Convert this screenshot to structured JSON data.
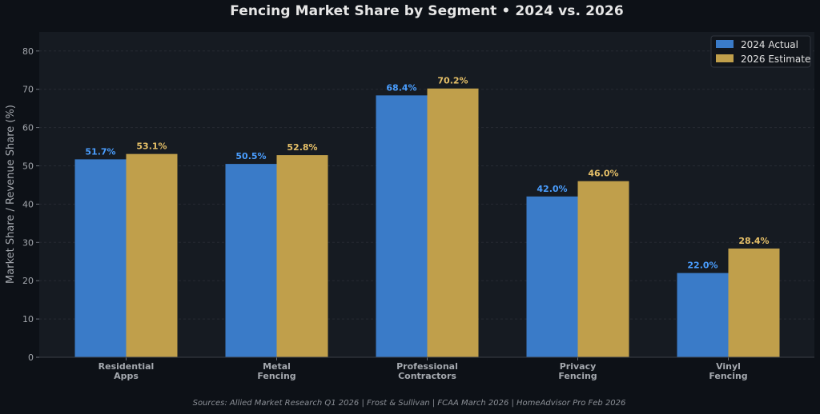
{
  "chart_data": {
    "type": "bar",
    "title": "Fencing Market Share by Segment  •  2024 vs. 2026",
    "xlabel": "",
    "ylabel": "Market Share / Revenue Share (%)",
    "ylim": [
      0,
      85
    ],
    "yticks": [
      0,
      10,
      20,
      30,
      40,
      50,
      60,
      70,
      80
    ],
    "grid": true,
    "legend_position": "top-right",
    "categories": [
      [
        "Residential",
        "Apps"
      ],
      [
        "Metal",
        "Fencing"
      ],
      [
        "Professional",
        "Contractors"
      ],
      [
        "Privacy",
        "Fencing"
      ],
      [
        "Vinyl",
        "Fencing"
      ]
    ],
    "series": [
      {
        "name": "2024 Actual",
        "color": "#3a7bc8",
        "label_color": "#4a9eff",
        "values": [
          51.7,
          50.5,
          68.4,
          42.0,
          22.0
        ],
        "labels": [
          "51.7%",
          "50.5%",
          "68.4%",
          "42.0%",
          "22.0%"
        ]
      },
      {
        "name": "2026 Estimate",
        "color": "#c09f4b",
        "label_color": "#e6c068",
        "values": [
          53.1,
          52.8,
          70.2,
          46.0,
          28.4
        ],
        "labels": [
          "53.1%",
          "52.8%",
          "70.2%",
          "46.0%",
          "28.4%"
        ]
      }
    ],
    "source": "Sources: Allied Market Research Q1 2026 | Frost & Sullivan | FCAA March 2026 | HomeAdvisor Pro Feb 2026"
  }
}
